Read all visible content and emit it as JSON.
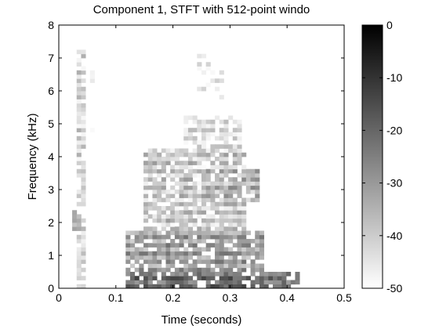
{
  "chart_data": {
    "type": "heatmap",
    "title": "Component 1, STFT with 512-point windo",
    "xlabel": "Time (seconds)",
    "ylabel": "Frequency (kHz)",
    "xlim": [
      0,
      0.5
    ],
    "ylim": [
      0,
      8
    ],
    "xticks": [
      "0",
      "0.1",
      "0.2",
      "0.3",
      "0.4",
      "0.5"
    ],
    "yticks": [
      "0",
      "1",
      "2",
      "3",
      "4",
      "5",
      "6",
      "7",
      "8"
    ],
    "grid": false,
    "colormap": "gray",
    "colorbar": {
      "range": [
        -50,
        0
      ],
      "ticks": [
        "0",
        "-10",
        "-20",
        "-30",
        "-40",
        "-50"
      ]
    },
    "regions": [
      {
        "t": [
          0.12,
          0.42
        ],
        "f": [
          0.0,
          0.55
        ],
        "level": -12
      },
      {
        "t": [
          0.12,
          0.36
        ],
        "f": [
          0.55,
          1.8
        ],
        "level": -22
      },
      {
        "t": [
          0.15,
          0.33
        ],
        "f": [
          1.8,
          4.2
        ],
        "level": -30
      },
      {
        "t": [
          0.25,
          0.35
        ],
        "f": [
          2.6,
          3.6
        ],
        "level": -26
      },
      {
        "t": [
          0.22,
          0.32
        ],
        "f": [
          4.2,
          5.3
        ],
        "level": -36
      },
      {
        "t": [
          0.03,
          0.05
        ],
        "f": [
          0.0,
          7.2
        ],
        "level": -34
      },
      {
        "t": [
          0.025,
          0.04
        ],
        "f": [
          1.8,
          2.4
        ],
        "level": -24
      },
      {
        "t": [
          0.055,
          0.065
        ],
        "f": [
          4.8,
          6.8
        ],
        "level": -40
      },
      {
        "t": [
          0.24,
          0.28
        ],
        "f": [
          6.0,
          7.1
        ],
        "level": -40
      },
      {
        "t": [
          0.28,
          0.29
        ],
        "f": [
          5.8,
          6.6
        ],
        "level": -40
      }
    ]
  }
}
